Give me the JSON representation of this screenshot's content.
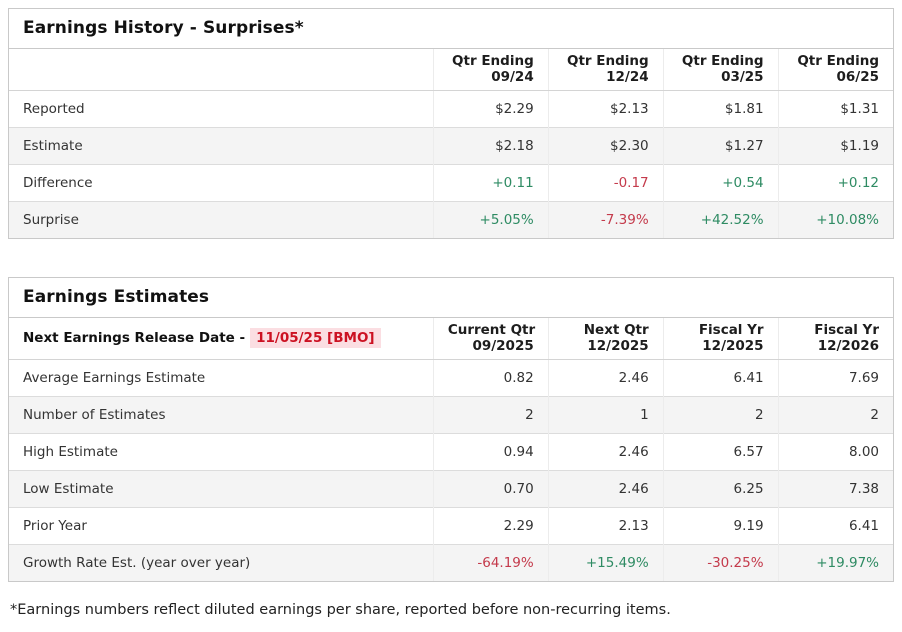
{
  "colors": {
    "positive": "#2e8b63",
    "negative": "#c43a4b",
    "date_text": "#cc1122",
    "date_highlight_bg": "#fbdee2"
  },
  "history": {
    "title": "Earnings History - Surprises*",
    "columns": [
      [
        "Qtr Ending",
        "09/24"
      ],
      [
        "Qtr Ending",
        "12/24"
      ],
      [
        "Qtr Ending",
        "03/25"
      ],
      [
        "Qtr Ending",
        "06/25"
      ]
    ],
    "rows": [
      {
        "label": "Reported",
        "values": [
          "$2.29",
          "$2.13",
          "$1.81",
          "$1.31"
        ],
        "tones": [
          null,
          null,
          null,
          null
        ]
      },
      {
        "label": "Estimate",
        "values": [
          "$2.18",
          "$2.30",
          "$1.27",
          "$1.19"
        ],
        "tones": [
          null,
          null,
          null,
          null
        ]
      },
      {
        "label": "Difference",
        "values": [
          "+0.11",
          "-0.17",
          "+0.54",
          "+0.12"
        ],
        "tones": [
          "pos",
          "neg",
          "pos",
          "pos"
        ]
      },
      {
        "label": "Surprise",
        "values": [
          "+5.05%",
          "-7.39%",
          "+42.52%",
          "+10.08%"
        ],
        "tones": [
          "pos",
          "neg",
          "pos",
          "pos"
        ]
      }
    ]
  },
  "estimates": {
    "title": "Earnings Estimates",
    "release_label": "Next Earnings Release Date -",
    "release_date": "11/05/25 [BMO]",
    "columns": [
      [
        "Current Qtr",
        "09/2025"
      ],
      [
        "Next Qtr",
        "12/2025"
      ],
      [
        "Fiscal Yr",
        "12/2025"
      ],
      [
        "Fiscal Yr",
        "12/2026"
      ]
    ],
    "rows": [
      {
        "label": "Average Earnings Estimate",
        "values": [
          "0.82",
          "2.46",
          "6.41",
          "7.69"
        ],
        "tones": [
          null,
          null,
          null,
          null
        ]
      },
      {
        "label": "Number of Estimates",
        "values": [
          "2",
          "1",
          "2",
          "2"
        ],
        "tones": [
          null,
          null,
          null,
          null
        ]
      },
      {
        "label": "High Estimate",
        "values": [
          "0.94",
          "2.46",
          "6.57",
          "8.00"
        ],
        "tones": [
          null,
          null,
          null,
          null
        ]
      },
      {
        "label": "Low Estimate",
        "values": [
          "0.70",
          "2.46",
          "6.25",
          "7.38"
        ],
        "tones": [
          null,
          null,
          null,
          null
        ]
      },
      {
        "label": "Prior Year",
        "values": [
          "2.29",
          "2.13",
          "9.19",
          "6.41"
        ],
        "tones": [
          null,
          null,
          null,
          null
        ]
      },
      {
        "label": "Growth Rate Est. (year over year)",
        "values": [
          "-64.19%",
          "+15.49%",
          "-30.25%",
          "+19.97%"
        ],
        "tones": [
          "neg",
          "pos",
          "neg",
          "pos"
        ]
      }
    ]
  },
  "footnote": "*Earnings numbers reflect diluted earnings per share, reported before non-recurring items."
}
